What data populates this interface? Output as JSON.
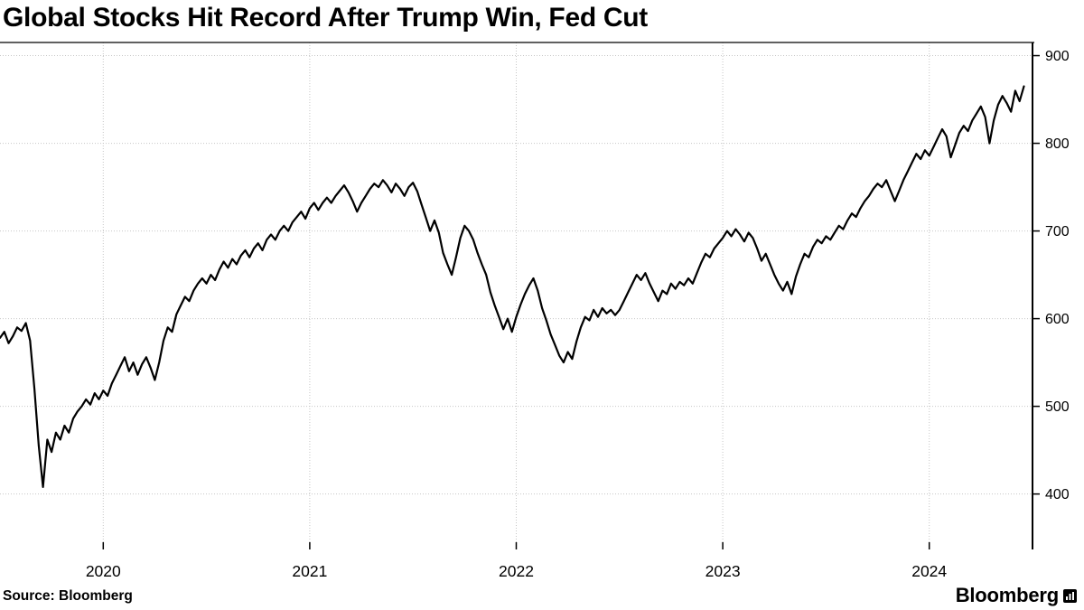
{
  "title": "Global Stocks Hit Record After Trump Win, Fed Cut",
  "source": "Source: Bloomberg",
  "branding": {
    "wordmark": "Bloomberg",
    "icon": "bloomberg-terminal-icon"
  },
  "colors": {
    "background": "#ffffff",
    "line": "#000000",
    "grid": "#c6c6c6",
    "axis": "#000000",
    "text": "#000000"
  },
  "chart_data": {
    "type": "line",
    "title": "Global Stocks Hit Record After Trump Win, Fed Cut",
    "xlabel": "",
    "ylabel": "",
    "grid": true,
    "legend": "none",
    "y_axis_side": "right",
    "xlim": [
      2020.0,
      2025.0
    ],
    "ylim": [
      345,
      915
    ],
    "yticks": [
      400,
      500,
      600,
      700,
      800,
      900
    ],
    "xticks": [
      {
        "value": 2020.5,
        "label": "2020"
      },
      {
        "value": 2021.5,
        "label": "2021"
      },
      {
        "value": 2022.5,
        "label": "2022"
      },
      {
        "value": 2023.5,
        "label": "2023"
      },
      {
        "value": 2024.5,
        "label": "2024"
      }
    ],
    "series": [
      {
        "x_start": 2020.0,
        "x_step": 0.0208333,
        "x_unit": "decimal-year",
        "values": [
          578,
          585,
          572,
          580,
          590,
          586,
          595,
          575,
          520,
          455,
          408,
          462,
          448,
          470,
          462,
          478,
          470,
          486,
          494,
          500,
          508,
          502,
          515,
          508,
          518,
          512,
          526,
          536,
          546,
          556,
          540,
          550,
          536,
          548,
          556,
          544,
          530,
          550,
          575,
          590,
          585,
          605,
          615,
          625,
          620,
          632,
          640,
          646,
          640,
          650,
          644,
          656,
          665,
          658,
          668,
          662,
          672,
          678,
          670,
          680,
          686,
          678,
          690,
          696,
          690,
          700,
          706,
          700,
          710,
          716,
          722,
          714,
          726,
          732,
          724,
          732,
          738,
          732,
          740,
          746,
          752,
          744,
          734,
          722,
          732,
          740,
          748,
          754,
          750,
          758,
          752,
          744,
          754,
          748,
          740,
          750,
          755,
          745,
          730,
          715,
          700,
          712,
          698,
          675,
          662,
          650,
          670,
          692,
          706,
          700,
          690,
          675,
          662,
          650,
          630,
          615,
          602,
          588,
          600,
          585,
          602,
          616,
          628,
          638,
          646,
          632,
          612,
          598,
          582,
          570,
          558,
          550,
          562,
          554,
          574,
          590,
          602,
          598,
          610,
          602,
          612,
          606,
          610,
          604,
          610,
          620,
          630,
          640,
          650,
          644,
          652,
          640,
          630,
          620,
          632,
          628,
          640,
          634,
          642,
          638,
          646,
          640,
          652,
          664,
          674,
          670,
          680,
          686,
          692,
          700,
          694,
          702,
          696,
          688,
          698,
          692,
          680,
          666,
          674,
          662,
          650,
          640,
          632,
          642,
          628,
          648,
          662,
          674,
          670,
          682,
          690,
          686,
          694,
          690,
          698,
          706,
          702,
          712,
          720,
          716,
          726,
          734,
          740,
          748,
          754,
          750,
          758,
          746,
          734,
          746,
          758,
          768,
          778,
          788,
          782,
          792,
          786,
          796,
          806,
          816,
          808,
          784,
          798,
          812,
          820,
          814,
          826,
          834,
          842,
          830,
          800,
          826,
          844,
          854,
          846,
          836,
          860,
          848,
          865
        ]
      }
    ]
  }
}
